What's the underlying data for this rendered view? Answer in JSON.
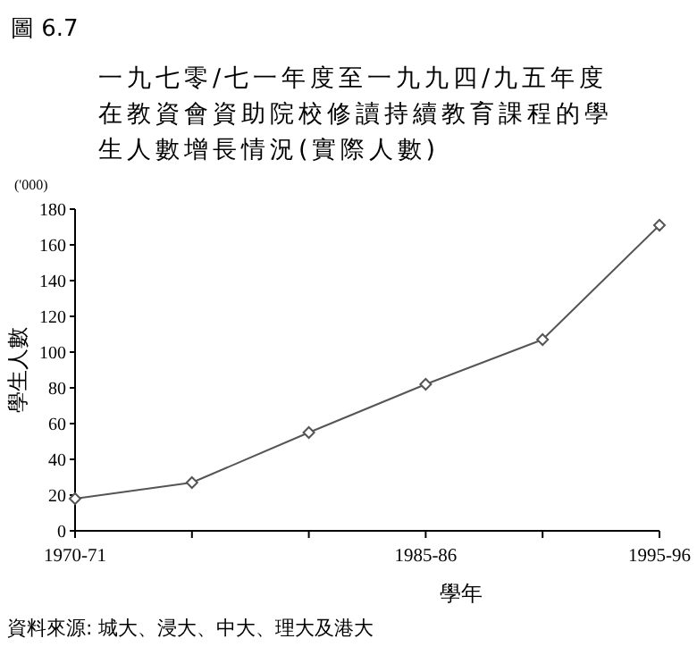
{
  "chart_data": {
    "type": "line",
    "title": "圖 6.7",
    "subtitle": "一九七零/七一年度至一九九四/九五年度在教資會資助院校修讀持續教育課程的學生人數增長情況(實際人數)",
    "xlabel": "學年",
    "ylabel": "學生人數",
    "annotations": [
      "('000)",
      "資料來源: 城大、浸大、中大、理大及港大"
    ],
    "categories": [
      "1970-71",
      null,
      null,
      "1985-86",
      null,
      "1995-96"
    ],
    "series": [
      {
        "color": "#555555",
        "values": [
          18,
          27,
          55,
          82,
          107,
          171
        ]
      }
    ],
    "ylim": [
      0,
      180
    ],
    "yticks": [
      0,
      20,
      40,
      60,
      80,
      100,
      120,
      140,
      160,
      180
    ],
    "marker": "diamond",
    "line_style": "solid"
  }
}
